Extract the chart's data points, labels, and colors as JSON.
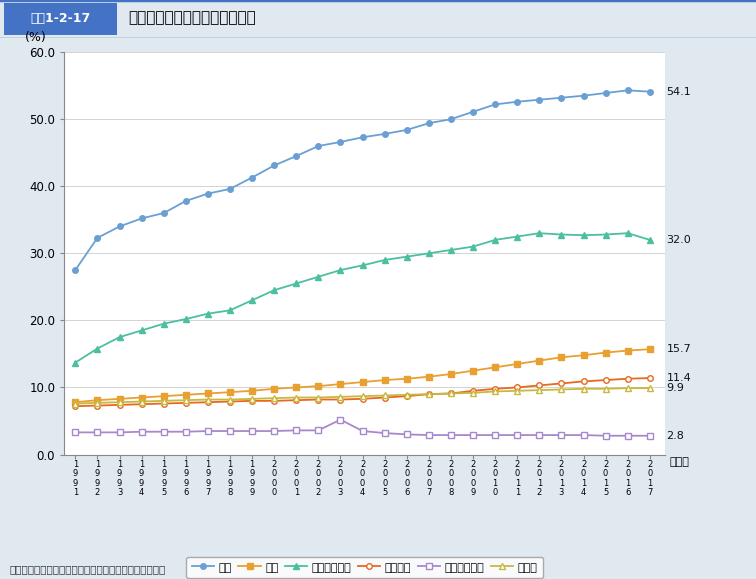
{
  "title_box": "図表1-2-17",
  "title_text": "定期健康診断における有所見率",
  "ylabel": "(%)",
  "xlabel": "（年）",
  "source": "資料：厚生労働省労働基準局「定期健康診断結果報告」",
  "years": [
    1991,
    1992,
    1993,
    1994,
    1995,
    1996,
    1997,
    1998,
    1999,
    2000,
    2001,
    2002,
    2003,
    2004,
    2005,
    2006,
    2007,
    2008,
    2009,
    2010,
    2011,
    2012,
    2013,
    2014,
    2015,
    2016,
    2017
  ],
  "series": [
    {
      "name": "全体",
      "values": [
        27.5,
        32.3,
        34.0,
        35.2,
        36.0,
        37.8,
        38.9,
        39.6,
        41.3,
        43.1,
        44.5,
        46.0,
        46.6,
        47.3,
        47.8,
        48.4,
        49.4,
        50.0,
        51.1,
        52.2,
        52.6,
        52.9,
        53.2,
        53.5,
        53.9,
        54.3,
        54.1
      ],
      "color": "#6B9FD4",
      "marker": "o",
      "filled": true,
      "label_value": "54.1"
    },
    {
      "name": "血圧",
      "values": [
        7.8,
        8.1,
        8.3,
        8.5,
        8.7,
        8.9,
        9.1,
        9.3,
        9.5,
        9.8,
        10.0,
        10.2,
        10.5,
        10.8,
        11.1,
        11.3,
        11.6,
        12.0,
        12.5,
        13.0,
        13.5,
        14.0,
        14.5,
        14.8,
        15.2,
        15.5,
        15.7
      ],
      "color": "#E8A030",
      "marker": "s",
      "filled": true,
      "label_value": "15.7"
    },
    {
      "name": "血中脂質検査",
      "values": [
        13.7,
        15.8,
        17.5,
        18.5,
        19.5,
        20.2,
        21.0,
        21.5,
        23.0,
        24.5,
        25.5,
        26.5,
        27.5,
        28.2,
        29.0,
        29.5,
        30.0,
        30.5,
        31.0,
        32.0,
        32.5,
        33.0,
        32.8,
        32.7,
        32.8,
        33.0,
        32.0
      ],
      "color": "#4BBFA0",
      "marker": "^",
      "filled": true,
      "label_value": "32.0"
    },
    {
      "name": "血糖検査",
      "values": [
        7.2,
        7.3,
        7.4,
        7.5,
        7.6,
        7.7,
        7.8,
        7.9,
        8.0,
        8.0,
        8.1,
        8.2,
        8.2,
        8.3,
        8.5,
        8.7,
        9.0,
        9.1,
        9.5,
        9.8,
        10.0,
        10.3,
        10.6,
        10.9,
        11.1,
        11.3,
        11.4
      ],
      "color": "#E86820",
      "marker": "o",
      "filled": false,
      "label_value": "11.4"
    },
    {
      "name": "尿検査（糖）",
      "values": [
        3.3,
        3.3,
        3.3,
        3.4,
        3.4,
        3.4,
        3.5,
        3.5,
        3.5,
        3.5,
        3.6,
        3.6,
        5.2,
        3.5,
        3.2,
        3.0,
        2.9,
        2.9,
        2.9,
        2.9,
        2.9,
        2.9,
        2.9,
        2.9,
        2.8,
        2.8,
        2.8
      ],
      "color": "#A888CC",
      "marker": "s",
      "filled": false,
      "label_value": "2.8"
    },
    {
      "name": "心電図",
      "values": [
        7.6,
        7.7,
        7.8,
        7.9,
        8.0,
        8.1,
        8.2,
        8.2,
        8.3,
        8.4,
        8.5,
        8.5,
        8.6,
        8.7,
        8.8,
        8.9,
        9.0,
        9.1,
        9.2,
        9.4,
        9.5,
        9.6,
        9.7,
        9.8,
        9.8,
        9.9,
        9.9
      ],
      "color": "#C8B840",
      "marker": "^",
      "filled": false,
      "label_value": "9.9"
    }
  ],
  "ylim": [
    0,
    60
  ],
  "yticks": [
    0.0,
    10.0,
    20.0,
    30.0,
    40.0,
    50.0,
    60.0
  ],
  "background_color": "#E0E8F0",
  "plot_background": "#FFFFFF",
  "header_bg": "#E0E8F0",
  "title_box_color": "#4472C4",
  "title_box_text_color": "#FFFFFF",
  "title_text_color": "#000000",
  "header_border_color": "#4472C4",
  "grid_color": "#CCCCCC",
  "spine_color": "#888888"
}
